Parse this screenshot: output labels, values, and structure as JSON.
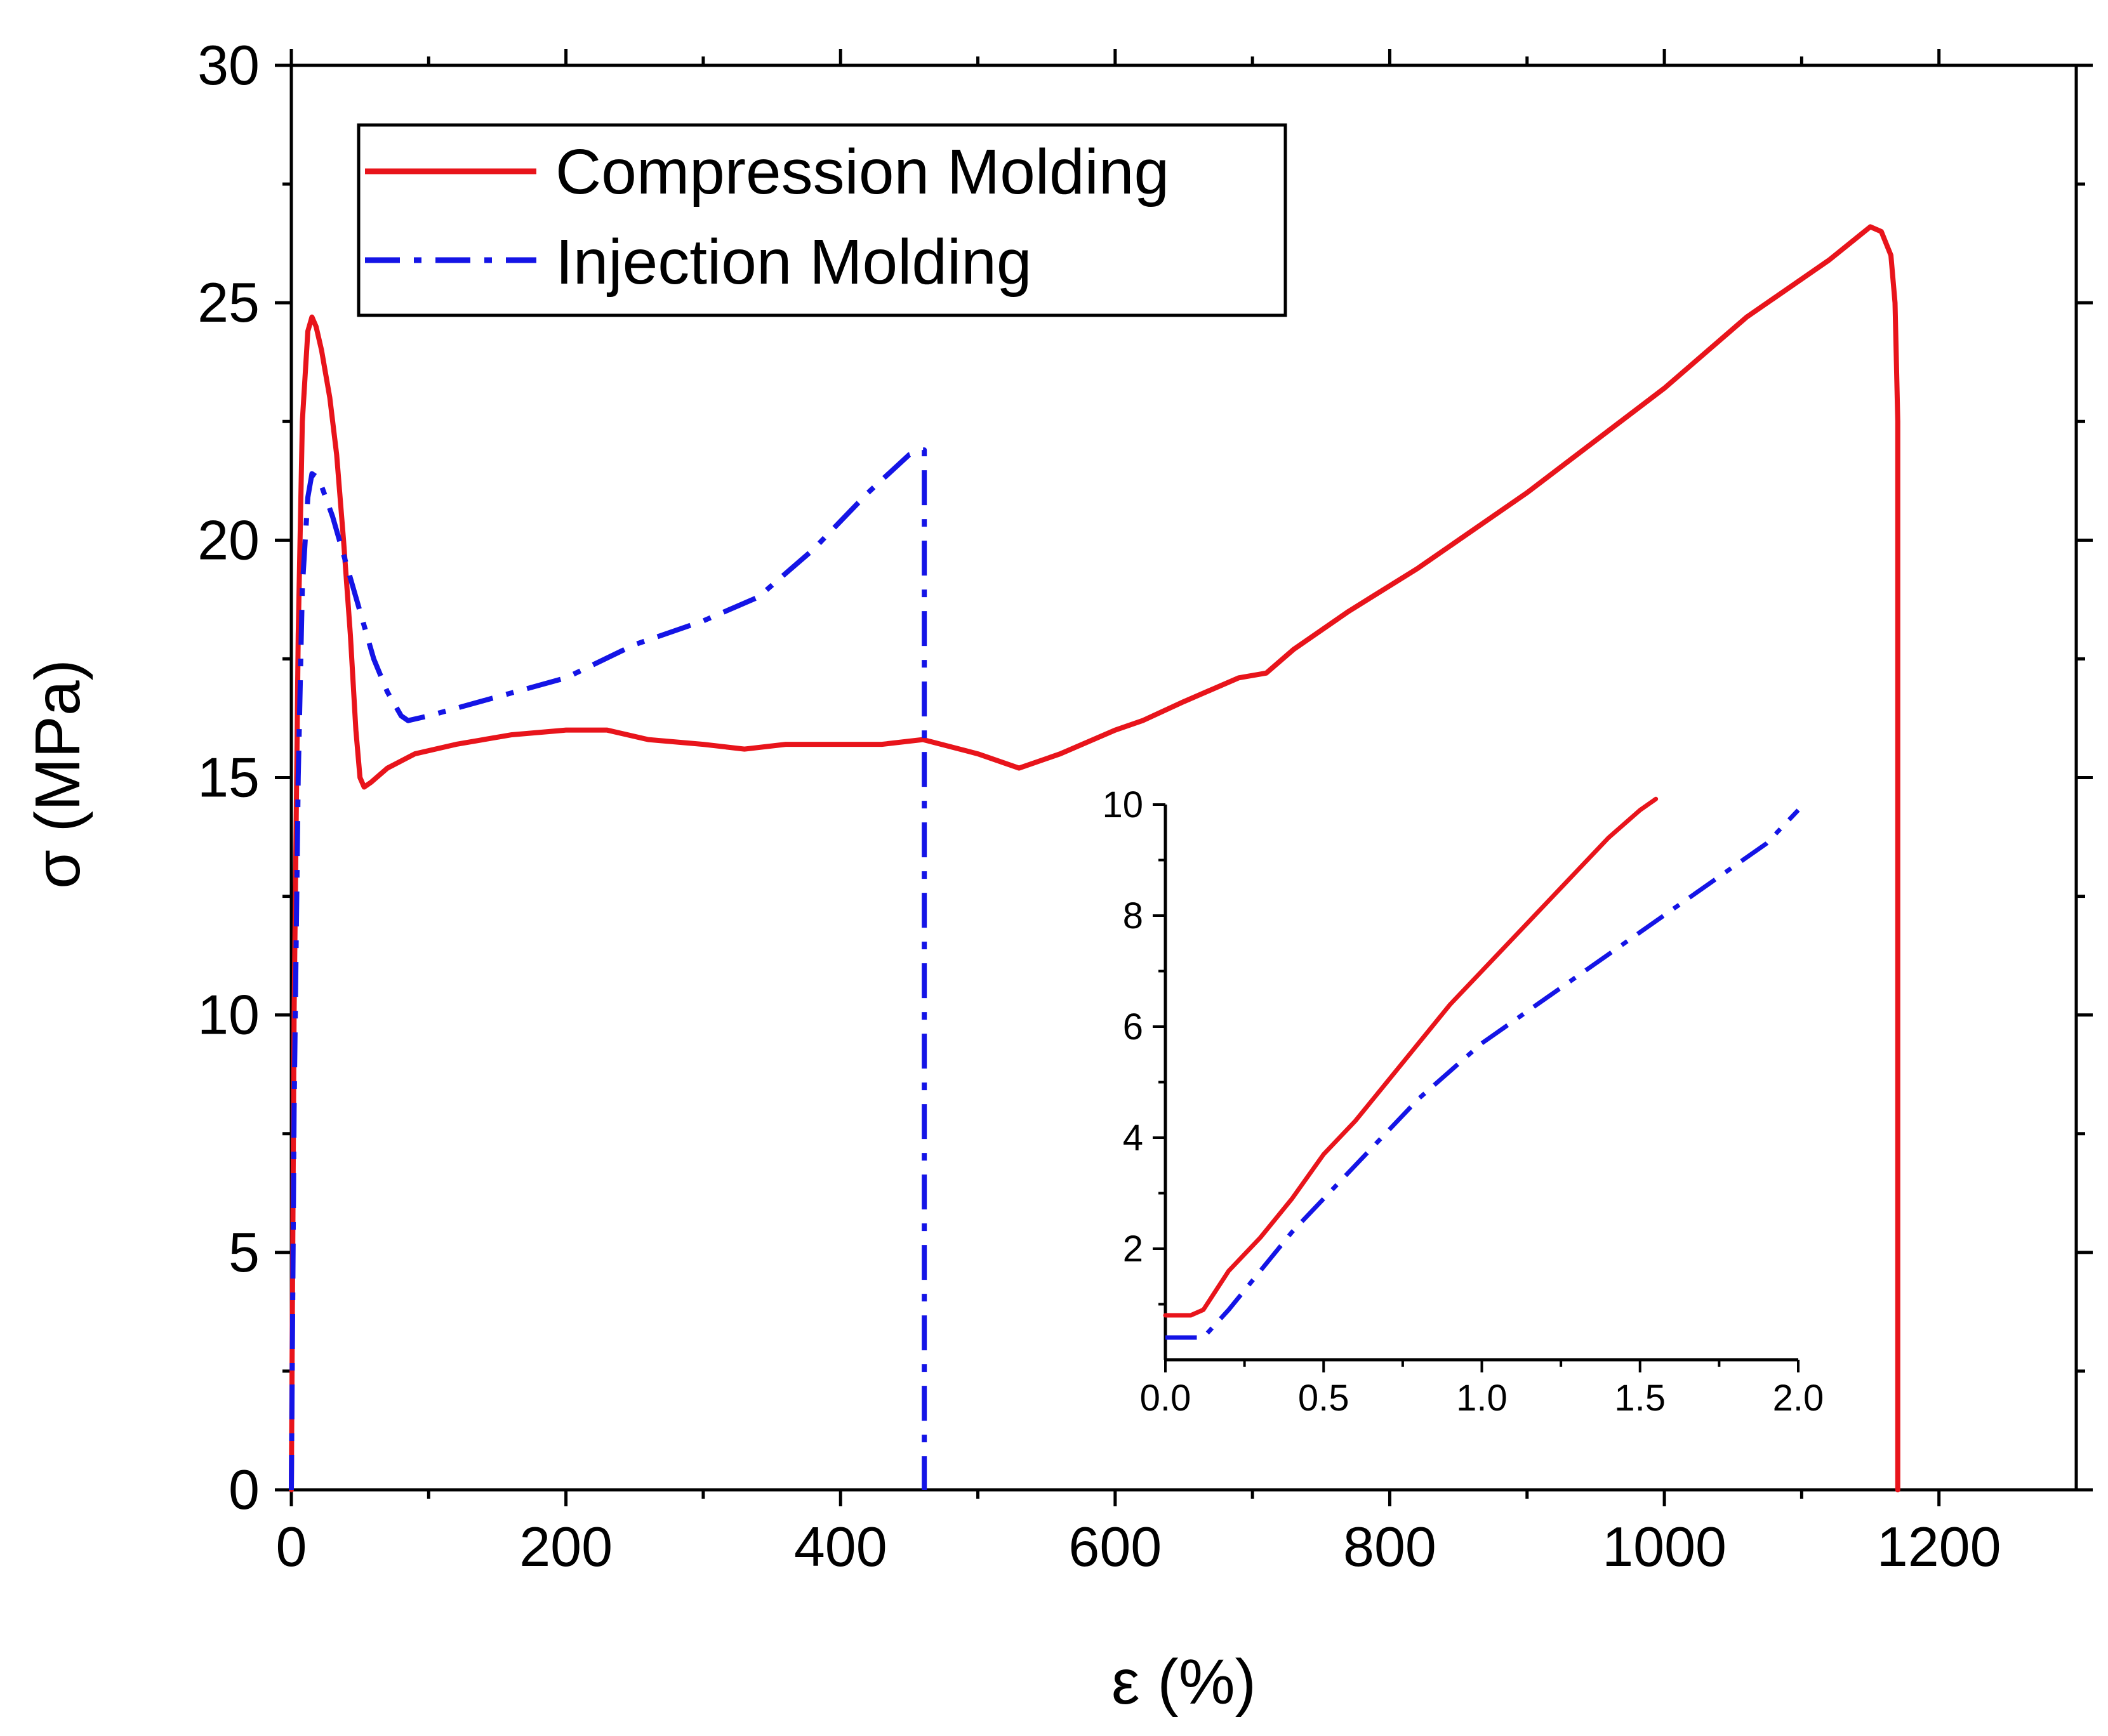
{
  "chart_data": [
    {
      "type": "line",
      "role": "main",
      "xlabel": "ε (%)",
      "ylabel": "σ (MPa)",
      "xlim": [
        0,
        1300
      ],
      "ylim": [
        0,
        30
      ],
      "x_ticks": [
        0,
        200,
        400,
        600,
        800,
        1000,
        1200
      ],
      "y_ticks": [
        0,
        5,
        10,
        15,
        20,
        25,
        30
      ],
      "legend_position": "top-left",
      "series": [
        {
          "name": "Compression Molding",
          "color": "#e8141b",
          "style": "solid",
          "x": [
            0,
            2,
            5,
            8,
            12,
            15,
            18,
            22,
            28,
            33,
            38,
            43,
            47,
            50,
            53,
            58,
            70,
            90,
            120,
            160,
            200,
            230,
            260,
            300,
            330,
            360,
            400,
            430,
            460,
            500,
            530,
            560,
            600,
            620,
            650,
            690,
            710,
            730,
            770,
            820,
            900,
            1000,
            1060,
            1120,
            1150,
            1158,
            1165,
            1168,
            1170,
            1170
          ],
          "values": [
            0,
            10,
            18,
            22.5,
            24.4,
            24.7,
            24.5,
            24.0,
            23.0,
            21.8,
            20.0,
            18.0,
            16.0,
            15.0,
            14.8,
            14.9,
            15.2,
            15.5,
            15.7,
            15.9,
            16.0,
            16.0,
            15.8,
            15.7,
            15.6,
            15.7,
            15.7,
            15.7,
            15.8,
            15.5,
            15.2,
            15.5,
            16.0,
            16.2,
            16.6,
            17.1,
            17.2,
            17.7,
            18.5,
            19.4,
            21.0,
            23.2,
            24.7,
            25.9,
            26.6,
            26.5,
            26.0,
            25.0,
            22.5,
            0
          ]
        },
        {
          "name": "Injection Molding",
          "color": "#1414e6",
          "style": "dashdot",
          "x": [
            0,
            2,
            5,
            8,
            12,
            15,
            20,
            30,
            40,
            50,
            60,
            70,
            80,
            85,
            100,
            150,
            200,
            250,
            300,
            340,
            380,
            420,
            450,
            460,
            461,
            461
          ],
          "values": [
            0,
            8,
            15,
            19,
            20.9,
            21.4,
            21.3,
            20.5,
            19.5,
            18.5,
            17.5,
            16.8,
            16.3,
            16.2,
            16.3,
            16.7,
            17.1,
            17.8,
            18.3,
            18.8,
            19.8,
            21.0,
            21.8,
            21.9,
            21.9,
            0
          ]
        }
      ]
    },
    {
      "type": "line",
      "role": "inset",
      "xlabel": "",
      "ylabel": "",
      "xlim": [
        0,
        2.0
      ],
      "ylim": [
        0,
        10
      ],
      "x_ticks": [
        "0.0",
        "0.5",
        "1.0",
        "1.5",
        "2.0"
      ],
      "y_ticks": [
        "2",
        "4",
        "6",
        "8",
        "10"
      ],
      "series": [
        {
          "name": "Compression Molding",
          "color": "#e8141b",
          "style": "solid",
          "x": [
            0,
            0.08,
            0.12,
            0.2,
            0.3,
            0.4,
            0.5,
            0.6,
            0.7,
            0.8,
            0.9,
            1.0,
            1.1,
            1.2,
            1.3,
            1.4,
            1.5,
            1.55
          ],
          "values": [
            0.8,
            0.8,
            0.9,
            1.6,
            2.2,
            2.9,
            3.7,
            4.3,
            5.0,
            5.7,
            6.4,
            7.0,
            7.6,
            8.2,
            8.8,
            9.4,
            9.9,
            10.1
          ]
        },
        {
          "name": "Injection Molding",
          "color": "#1414e6",
          "style": "dashdot",
          "x": [
            0,
            0.12,
            0.2,
            0.3,
            0.4,
            0.5,
            0.6,
            0.7,
            0.8,
            0.9,
            1.0,
            1.1,
            1.2,
            1.3,
            1.4,
            1.5,
            1.6,
            1.7,
            1.8,
            1.9,
            2.0
          ],
          "values": [
            0.4,
            0.4,
            0.9,
            1.6,
            2.3,
            2.9,
            3.5,
            4.1,
            4.7,
            5.2,
            5.7,
            6.1,
            6.5,
            6.9,
            7.3,
            7.7,
            8.1,
            8.5,
            8.9,
            9.3,
            9.9
          ]
        }
      ]
    }
  ]
}
